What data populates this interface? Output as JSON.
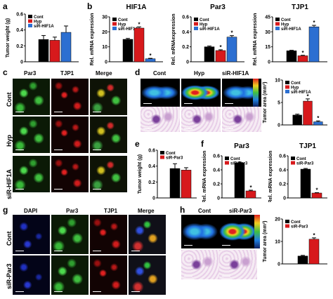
{
  "panels": {
    "a": "a",
    "b": "b",
    "c": "c",
    "d": "d",
    "e": "e",
    "f": "f",
    "g": "g",
    "h": "h"
  },
  "groups3": [
    "Cont",
    "Hyp",
    "siR-HIF1A"
  ],
  "groups2": [
    "Cont",
    "siR-Par3"
  ],
  "micro_c": {
    "cols": [
      "Par3",
      "TJP1",
      "Merge"
    ],
    "rows": [
      "Cont",
      "Hyp",
      "siR-HIF1A"
    ]
  },
  "micro_d": {
    "cols": [
      "Cont",
      "Hyp",
      "siR-HIF1A"
    ]
  },
  "micro_g": {
    "cols": [
      "DAPI",
      "Par3",
      "TJP1",
      "Merge"
    ],
    "rows": [
      "Cont",
      "siR-Par3"
    ]
  },
  "micro_h": {
    "cols": [
      "Cont",
      "siR-Par3"
    ]
  },
  "colors": {
    "black": "#000000",
    "red": "#d7191c",
    "blue": "#2c6fd1"
  },
  "chart_data": [
    {
      "id": "a",
      "type": "bar",
      "title": "",
      "ylabel": "Tumor weight (g)",
      "ylim": [
        0,
        0.6
      ],
      "ticks": [
        "0",
        "0.2",
        "0.4",
        "0.6"
      ],
      "categories": [
        "Cont",
        "Hyp",
        "siR-HIF1A"
      ],
      "values": [
        0.28,
        0.27,
        0.37
      ],
      "errors": [
        0.05,
        0.04,
        0.08
      ],
      "stars": [
        "",
        "",
        ""
      ]
    },
    {
      "id": "b1",
      "type": "bar",
      "title": "HIF1A",
      "ylabel": "Rel. mRNA expression",
      "ylim": [
        0,
        30
      ],
      "ticks": [
        "0",
        "10",
        "20",
        "30"
      ],
      "categories": [
        "Cont",
        "Hyp",
        "siR-HIF1A"
      ],
      "values": [
        15,
        22.5,
        2
      ],
      "errors": [
        0.6,
        0.8,
        0.3
      ],
      "stars": [
        "",
        "*",
        "*"
      ]
    },
    {
      "id": "b2",
      "type": "bar",
      "title": "Par3",
      "ylabel": "Rel. mRNAexpression",
      "ylim": [
        0,
        0.6
      ],
      "ticks": [
        "0",
        "0.2",
        "0.4",
        "0.6"
      ],
      "categories": [
        "Cont",
        "Hyp",
        "siR-HIF1A"
      ],
      "values": [
        0.2,
        0.15,
        0.33
      ],
      "errors": [
        0.01,
        0.01,
        0.02
      ],
      "stars": [
        "",
        "*",
        "*"
      ]
    },
    {
      "id": "b3",
      "type": "bar",
      "title": "TJP1",
      "ylabel": "Rel. mRNA expression",
      "ylim": [
        0,
        45
      ],
      "ticks": [
        "0",
        "15",
        "30",
        "45"
      ],
      "categories": [
        "Cont",
        "Hyp",
        "siR-HIF1A"
      ],
      "values": [
        11,
        6,
        35
      ],
      "errors": [
        0.5,
        0.5,
        1.5
      ],
      "stars": [
        "",
        "*",
        "*"
      ]
    },
    {
      "id": "d",
      "type": "bar",
      "title": "",
      "ylabel": "Tumor area (mm²)",
      "ylim": [
        0,
        10
      ],
      "ticks": [
        "0",
        "5",
        "10"
      ],
      "categories": [
        "Cont",
        "Hyp",
        "siR-HIF1A"
      ],
      "values": [
        2.2,
        5.3,
        0.7
      ],
      "errors": [
        0.2,
        0.5,
        0.2
      ],
      "stars": [
        "",
        "*",
        "*"
      ]
    },
    {
      "id": "e",
      "type": "bar",
      "title": "",
      "ylabel": "Tumor weight (g)",
      "ylim": [
        0,
        0.6
      ],
      "ticks": [
        "0",
        "0.2",
        "0.4",
        "0.6"
      ],
      "categories": [
        "Cont",
        "siR-Par3"
      ],
      "values": [
        0.37,
        0.35
      ],
      "errors": [
        0.06,
        0.03
      ],
      "stars": [
        "",
        ""
      ]
    },
    {
      "id": "f1",
      "type": "bar",
      "title": "Par3",
      "ylabel": "Rel. mRNA expression",
      "ylim": [
        0,
        0.6
      ],
      "ticks": [
        "0",
        "0.2",
        "0.4",
        "0.6"
      ],
      "categories": [
        "Cont",
        "siR-Par3"
      ],
      "values": [
        0.5,
        0.1
      ],
      "errors": [
        0.01,
        0.01
      ],
      "stars": [
        "",
        "*"
      ]
    },
    {
      "id": "f2",
      "type": "bar",
      "title": "TJP1",
      "ylabel": "Rel. mRNA expression",
      "ylim": [
        0,
        0.6
      ],
      "ticks": [
        "0",
        "0.2",
        "0.4",
        "0.6"
      ],
      "categories": [
        "Cont",
        "siR-Par3"
      ],
      "values": [
        0.41,
        0.07
      ],
      "errors": [
        0.01,
        0.005
      ],
      "stars": [
        "",
        "*"
      ]
    },
    {
      "id": "h",
      "type": "bar",
      "title": "",
      "ylabel": "Tumor area (mm²)",
      "ylim": [
        0,
        20
      ],
      "ticks": [
        "0",
        "10",
        "20"
      ],
      "categories": [
        "Cont",
        "siR-Par3"
      ],
      "values": [
        3.5,
        11
      ],
      "errors": [
        0.3,
        0.6
      ],
      "stars": [
        "",
        "*"
      ]
    }
  ]
}
